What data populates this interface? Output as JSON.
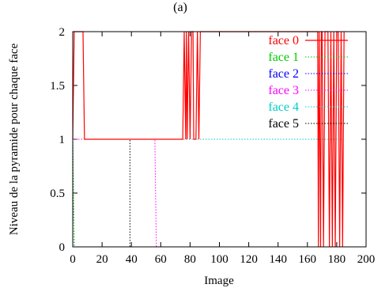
{
  "chart_data": {
    "type": "line",
    "title": "(a)",
    "xlabel": "Image",
    "ylabel": "Niveau de la pyramide  pour chaque face",
    "xlim": [
      0,
      200
    ],
    "ylim": [
      0,
      2
    ],
    "xticks": [
      "0",
      "20",
      "40",
      "60",
      "80",
      "100",
      "120",
      "140",
      "160",
      "180",
      "200"
    ],
    "yticks": [
      "0",
      "0.5",
      "1",
      "1.5",
      "2"
    ],
    "grid": false,
    "legend_position": "top-right",
    "series": [
      {
        "name": "face 0",
        "color": "#ff0000",
        "dash": "solid",
        "points": [
          [
            0,
            1
          ],
          [
            1,
            2
          ],
          [
            7,
            2
          ],
          [
            8,
            1
          ],
          [
            75,
            1
          ],
          [
            76,
            2
          ],
          [
            77,
            1
          ],
          [
            77.5,
            2
          ],
          [
            78,
            1
          ],
          [
            79,
            2
          ],
          [
            80,
            1
          ],
          [
            81,
            2
          ],
          [
            82,
            2
          ],
          [
            82.5,
            1
          ],
          [
            84,
            1
          ],
          [
            85,
            2
          ],
          [
            86,
            1
          ],
          [
            87,
            2
          ],
          [
            88,
            2
          ],
          [
            167,
            2
          ],
          [
            167.5,
            0
          ],
          [
            168,
            2
          ],
          [
            169,
            0
          ],
          [
            169.5,
            2
          ],
          [
            170,
            2
          ],
          [
            171,
            0
          ],
          [
            172,
            2
          ],
          [
            174,
            2
          ],
          [
            175,
            0
          ],
          [
            176,
            2
          ],
          [
            177,
            0
          ],
          [
            178,
            2
          ],
          [
            179,
            0
          ],
          [
            180,
            2
          ],
          [
            181,
            2
          ],
          [
            182,
            0
          ],
          [
            183,
            2
          ],
          [
            184,
            0
          ],
          [
            185,
            2
          ]
        ]
      },
      {
        "name": "face 1",
        "color": "#00cc00",
        "dash": "dotted",
        "points": [
          [
            0,
            1
          ],
          [
            1,
            0
          ],
          [
            185,
            0
          ]
        ]
      },
      {
        "name": "face 2",
        "color": "#0000ff",
        "dash": "dotted",
        "points": [
          [
            0,
            1
          ],
          [
            1,
            0
          ],
          [
            185,
            0
          ]
        ]
      },
      {
        "name": "face 3",
        "color": "#ff00ff",
        "dash": "dotted",
        "points": [
          [
            0,
            1
          ],
          [
            56,
            1
          ],
          [
            57,
            0
          ],
          [
            185,
            0
          ]
        ]
      },
      {
        "name": "face 4",
        "color": "#00cccc",
        "dash": "dotted",
        "points": [
          [
            0,
            1
          ],
          [
            185,
            1
          ]
        ]
      },
      {
        "name": "face 5",
        "color": "#000000",
        "dash": "dotted",
        "points": [
          [
            0,
            1
          ],
          [
            39,
            1
          ],
          [
            39,
            0
          ],
          [
            185,
            0
          ]
        ]
      }
    ]
  }
}
